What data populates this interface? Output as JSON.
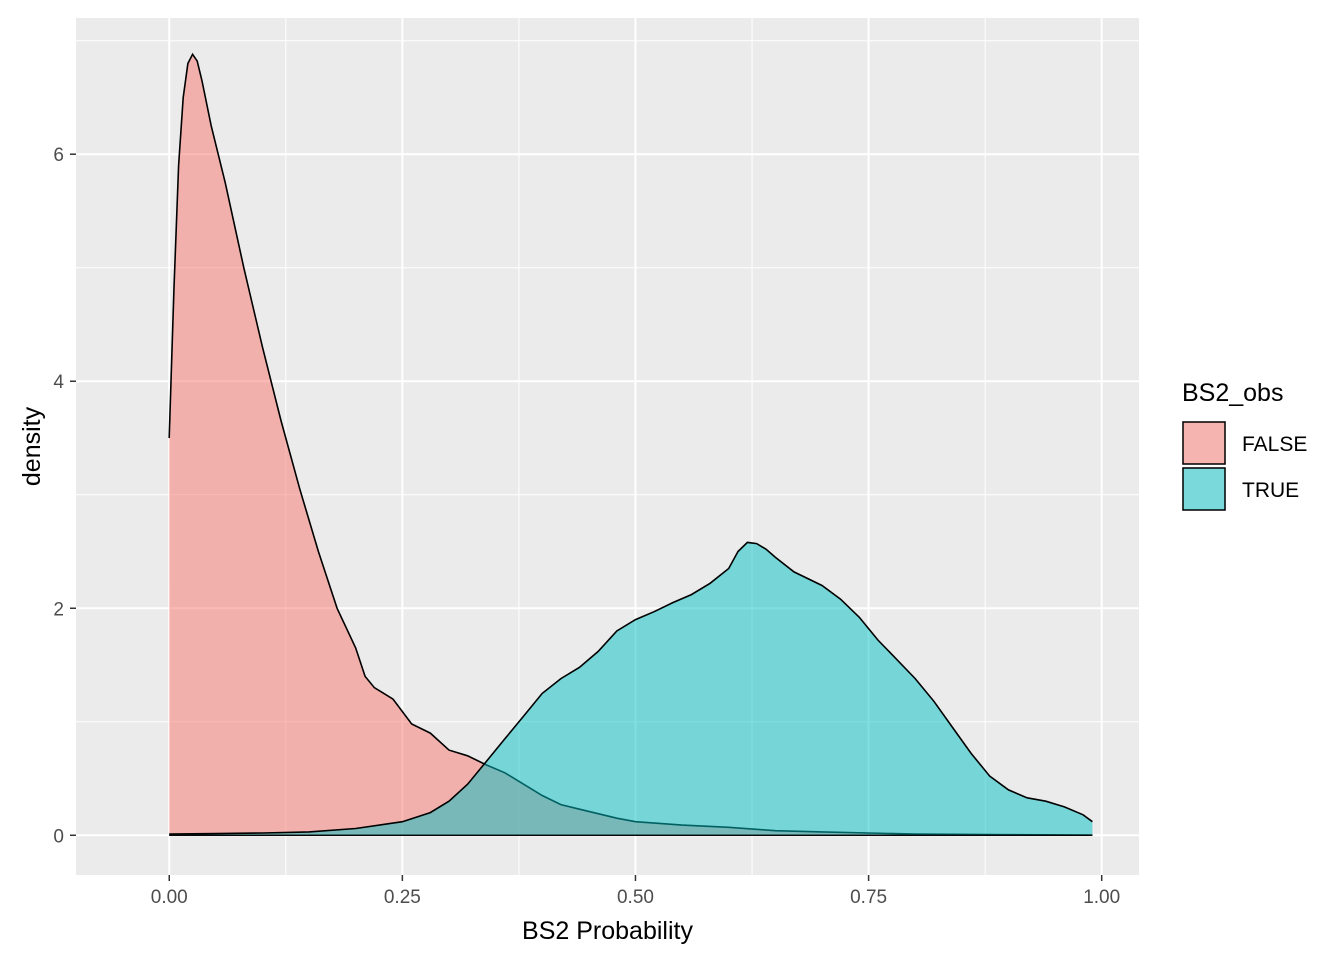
{
  "chart_data": {
    "type": "area",
    "subtype": "density",
    "xlabel": "BS2 Probability",
    "ylabel": "density",
    "xlim": [
      -0.1,
      1.04
    ],
    "ylim": [
      -0.35,
      7.2
    ],
    "x_ticks": [
      0.0,
      0.25,
      0.5,
      0.75,
      1.0
    ],
    "x_tick_labels": [
      "0.00",
      "0.25",
      "0.50",
      "0.75",
      "1.00"
    ],
    "y_ticks": [
      0,
      2,
      4,
      6
    ],
    "y_tick_labels": [
      "0",
      "2",
      "4",
      "6"
    ],
    "grid": true,
    "legend": {
      "title": "BS2_obs",
      "placement": "right",
      "entries": [
        {
          "label": "FALSE",
          "color": "#F8766D"
        },
        {
          "label": "TRUE",
          "color": "#00BFC4"
        }
      ]
    },
    "fill_alpha": 0.5,
    "panel_background": "#EBEBEB",
    "series": [
      {
        "name": "FALSE",
        "color": "#F8766D",
        "points": [
          [
            0.0,
            3.5
          ],
          [
            0.005,
            4.8
          ],
          [
            0.01,
            5.9
          ],
          [
            0.015,
            6.5
          ],
          [
            0.02,
            6.8
          ],
          [
            0.025,
            6.88
          ],
          [
            0.03,
            6.82
          ],
          [
            0.035,
            6.65
          ],
          [
            0.045,
            6.25
          ],
          [
            0.06,
            5.75
          ],
          [
            0.08,
            5.0
          ],
          [
            0.1,
            4.3
          ],
          [
            0.12,
            3.65
          ],
          [
            0.14,
            3.05
          ],
          [
            0.16,
            2.5
          ],
          [
            0.18,
            2.0
          ],
          [
            0.2,
            1.65
          ],
          [
            0.21,
            1.4
          ],
          [
            0.22,
            1.3
          ],
          [
            0.24,
            1.2
          ],
          [
            0.26,
            0.98
          ],
          [
            0.28,
            0.9
          ],
          [
            0.3,
            0.75
          ],
          [
            0.32,
            0.7
          ],
          [
            0.34,
            0.62
          ],
          [
            0.36,
            0.55
          ],
          [
            0.38,
            0.45
          ],
          [
            0.4,
            0.35
          ],
          [
            0.42,
            0.27
          ],
          [
            0.44,
            0.23
          ],
          [
            0.46,
            0.19
          ],
          [
            0.48,
            0.15
          ],
          [
            0.5,
            0.12
          ],
          [
            0.55,
            0.09
          ],
          [
            0.6,
            0.07
          ],
          [
            0.65,
            0.04
          ],
          [
            0.7,
            0.03
          ],
          [
            0.75,
            0.02
          ],
          [
            0.8,
            0.01
          ],
          [
            0.9,
            0.005
          ],
          [
            0.99,
            0.002
          ]
        ]
      },
      {
        "name": "TRUE",
        "color": "#00BFC4",
        "points": [
          [
            0.0,
            0.01
          ],
          [
            0.05,
            0.015
          ],
          [
            0.1,
            0.02
          ],
          [
            0.15,
            0.03
          ],
          [
            0.2,
            0.06
          ],
          [
            0.25,
            0.12
          ],
          [
            0.28,
            0.2
          ],
          [
            0.3,
            0.3
          ],
          [
            0.32,
            0.45
          ],
          [
            0.34,
            0.65
          ],
          [
            0.36,
            0.85
          ],
          [
            0.38,
            1.05
          ],
          [
            0.4,
            1.25
          ],
          [
            0.42,
            1.38
          ],
          [
            0.44,
            1.48
          ],
          [
            0.46,
            1.62
          ],
          [
            0.48,
            1.8
          ],
          [
            0.5,
            1.9
          ],
          [
            0.52,
            1.97
          ],
          [
            0.54,
            2.05
          ],
          [
            0.56,
            2.12
          ],
          [
            0.58,
            2.22
          ],
          [
            0.6,
            2.35
          ],
          [
            0.61,
            2.5
          ],
          [
            0.62,
            2.58
          ],
          [
            0.63,
            2.57
          ],
          [
            0.64,
            2.52
          ],
          [
            0.65,
            2.45
          ],
          [
            0.67,
            2.32
          ],
          [
            0.7,
            2.2
          ],
          [
            0.72,
            2.08
          ],
          [
            0.74,
            1.92
          ],
          [
            0.76,
            1.72
          ],
          [
            0.78,
            1.55
          ],
          [
            0.8,
            1.38
          ],
          [
            0.82,
            1.18
          ],
          [
            0.84,
            0.95
          ],
          [
            0.86,
            0.72
          ],
          [
            0.88,
            0.52
          ],
          [
            0.9,
            0.4
          ],
          [
            0.92,
            0.33
          ],
          [
            0.94,
            0.3
          ],
          [
            0.96,
            0.25
          ],
          [
            0.98,
            0.18
          ],
          [
            0.99,
            0.12
          ]
        ]
      }
    ]
  }
}
